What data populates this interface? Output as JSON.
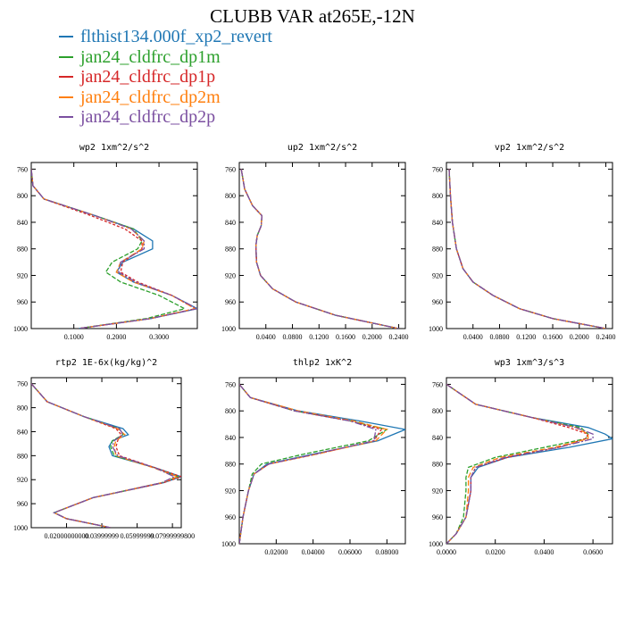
{
  "title": "CLUBB VAR at265E,-12N",
  "legend": [
    {
      "name": "flthist134.000f_xp2_revert",
      "color": "#1f77b4"
    },
    {
      "name": "jan24_cldfrc_dp1m",
      "color": "#2ca02c"
    },
    {
      "name": "jan24_cldfrc_dp1p",
      "color": "#d62728"
    },
    {
      "name": "jan24_cldfrc_dp2m",
      "color": "#ff7f0e"
    },
    {
      "name": "jan24_cldfrc_dp2p",
      "color": "#7b4fa0"
    }
  ],
  "chart_data": [
    {
      "type": "line",
      "title": "wp2   1xm^2/s^2",
      "ylim": [
        1000,
        750
      ],
      "yticks": [
        "760",
        "800",
        "840",
        "880",
        "920",
        "960",
        "1000"
      ],
      "xlim": [
        0.0,
        0.39
      ],
      "xticks": [
        "0.1000",
        "0.2000",
        "0.3000"
      ],
      "y": [
        760,
        785,
        805,
        830,
        850,
        868,
        880,
        900,
        915,
        930,
        950,
        970,
        985,
        1000
      ],
      "series": [
        {
          "name": "flthist134.000f_xp2_revert",
          "values": [
            0.0,
            0.004,
            0.03,
            0.15,
            0.24,
            0.285,
            0.285,
            0.215,
            0.2,
            0.24,
            0.33,
            0.39,
            0.28,
            0.11
          ]
        },
        {
          "name": "jan24_cldfrc_dp1m",
          "values": [
            0.0,
            0.004,
            0.03,
            0.15,
            0.24,
            0.26,
            0.25,
            0.19,
            0.175,
            0.21,
            0.3,
            0.36,
            0.27,
            0.11
          ]
        },
        {
          "name": "jan24_cldfrc_dp1p",
          "values": [
            0.0,
            0.004,
            0.03,
            0.14,
            0.22,
            0.26,
            0.26,
            0.215,
            0.21,
            0.25,
            0.33,
            0.385,
            0.28,
            0.11
          ]
        },
        {
          "name": "jan24_cldfrc_dp2m",
          "values": [
            0.0,
            0.004,
            0.03,
            0.15,
            0.235,
            0.265,
            0.26,
            0.21,
            0.2,
            0.24,
            0.33,
            0.385,
            0.28,
            0.11
          ]
        },
        {
          "name": "jan24_cldfrc_dp2p",
          "values": [
            0.0,
            0.004,
            0.03,
            0.15,
            0.235,
            0.265,
            0.265,
            0.21,
            0.205,
            0.245,
            0.33,
            0.39,
            0.28,
            0.11
          ]
        }
      ]
    },
    {
      "type": "line",
      "title": "up2   1xm^2/s^2",
      "ylim": [
        1000,
        750
      ],
      "yticks": [
        "760",
        "800",
        "840",
        "880",
        "920",
        "960",
        "1000"
      ],
      "xlim": [
        0.0,
        0.25
      ],
      "xticks": [
        "0.0400",
        "0.0800",
        "0.1200",
        "0.1600",
        "0.2000",
        "0.2400"
      ],
      "y": [
        760,
        790,
        815,
        830,
        845,
        860,
        875,
        900,
        920,
        940,
        960,
        980,
        1000
      ],
      "series": [
        {
          "name": "flthist134.000f_xp2_revert",
          "values": [
            0.003,
            0.008,
            0.02,
            0.034,
            0.033,
            0.027,
            0.025,
            0.026,
            0.032,
            0.05,
            0.085,
            0.145,
            0.24
          ]
        },
        {
          "name": "jan24_cldfrc_dp1m",
          "values": [
            0.003,
            0.008,
            0.02,
            0.034,
            0.033,
            0.027,
            0.025,
            0.026,
            0.032,
            0.05,
            0.085,
            0.145,
            0.24
          ]
        },
        {
          "name": "jan24_cldfrc_dp1p",
          "values": [
            0.003,
            0.008,
            0.02,
            0.034,
            0.033,
            0.027,
            0.025,
            0.026,
            0.032,
            0.05,
            0.085,
            0.145,
            0.24
          ]
        },
        {
          "name": "jan24_cldfrc_dp2m",
          "values": [
            0.003,
            0.008,
            0.02,
            0.034,
            0.033,
            0.027,
            0.025,
            0.026,
            0.032,
            0.05,
            0.085,
            0.145,
            0.24
          ]
        },
        {
          "name": "jan24_cldfrc_dp2p",
          "values": [
            0.003,
            0.008,
            0.02,
            0.034,
            0.033,
            0.027,
            0.025,
            0.026,
            0.032,
            0.05,
            0.085,
            0.145,
            0.24
          ]
        }
      ]
    },
    {
      "type": "line",
      "title": "vp2   1xm^2/s^2",
      "ylim": [
        1000,
        750
      ],
      "yticks": [
        "760",
        "800",
        "840",
        "880",
        "920",
        "960",
        "1000"
      ],
      "xlim": [
        0.0,
        0.25
      ],
      "xticks": [
        "0.0400",
        "0.0800",
        "0.1200",
        "0.1600",
        "0.2000",
        "0.2400"
      ],
      "y": [
        760,
        800,
        840,
        880,
        910,
        930,
        950,
        970,
        985,
        1000
      ],
      "series": [
        {
          "name": "flthist134.000f_xp2_revert",
          "values": [
            0.004,
            0.006,
            0.009,
            0.015,
            0.025,
            0.04,
            0.07,
            0.11,
            0.16,
            0.24
          ]
        },
        {
          "name": "jan24_cldfrc_dp1m",
          "values": [
            0.004,
            0.006,
            0.009,
            0.015,
            0.025,
            0.04,
            0.07,
            0.11,
            0.16,
            0.24
          ]
        },
        {
          "name": "jan24_cldfrc_dp1p",
          "values": [
            0.004,
            0.006,
            0.009,
            0.015,
            0.025,
            0.04,
            0.07,
            0.11,
            0.16,
            0.24
          ]
        },
        {
          "name": "jan24_cldfrc_dp2m",
          "values": [
            0.004,
            0.006,
            0.009,
            0.015,
            0.025,
            0.04,
            0.07,
            0.11,
            0.16,
            0.24
          ]
        },
        {
          "name": "jan24_cldfrc_dp2p",
          "values": [
            0.004,
            0.006,
            0.009,
            0.015,
            0.025,
            0.04,
            0.07,
            0.11,
            0.16,
            0.24
          ]
        }
      ]
    },
    {
      "type": "line",
      "title": "rtp2   1E-6x(kg/kg)^2",
      "ylim": [
        1000,
        750
      ],
      "yticks": [
        "760",
        "800",
        "840",
        "880",
        "920",
        "960",
        "1000"
      ],
      "xlim": [
        0.0,
        0.085
      ],
      "xticks": [
        "0.02000000000",
        "0.03999999",
        "0.05999999",
        "0.07999999800"
      ],
      "y": [
        760,
        790,
        815,
        835,
        845,
        855,
        865,
        880,
        900,
        915,
        925,
        950,
        975,
        985,
        1000
      ],
      "series": [
        {
          "name": "flthist134.000f_xp2_revert",
          "values": [
            0.0,
            0.009,
            0.03,
            0.052,
            0.055,
            0.046,
            0.044,
            0.046,
            0.07,
            0.085,
            0.075,
            0.035,
            0.013,
            0.02,
            0.045
          ]
        },
        {
          "name": "jan24_cldfrc_dp1m",
          "values": [
            0.0,
            0.009,
            0.03,
            0.05,
            0.052,
            0.046,
            0.045,
            0.047,
            0.07,
            0.083,
            0.074,
            0.035,
            0.013,
            0.02,
            0.045
          ]
        },
        {
          "name": "jan24_cldfrc_dp1p",
          "values": [
            0.0,
            0.009,
            0.03,
            0.048,
            0.051,
            0.049,
            0.048,
            0.05,
            0.07,
            0.085,
            0.075,
            0.035,
            0.013,
            0.02,
            0.045
          ]
        },
        {
          "name": "jan24_cldfrc_dp2m",
          "values": [
            0.0,
            0.009,
            0.03,
            0.049,
            0.053,
            0.048,
            0.047,
            0.048,
            0.069,
            0.083,
            0.074,
            0.035,
            0.013,
            0.02,
            0.045
          ]
        },
        {
          "name": "jan24_cldfrc_dp2p",
          "values": [
            0.0,
            0.009,
            0.03,
            0.05,
            0.052,
            0.047,
            0.046,
            0.049,
            0.07,
            0.081,
            0.074,
            0.035,
            0.013,
            0.02,
            0.045
          ]
        }
      ]
    },
    {
      "type": "line",
      "title": "thlp2   1xK^2",
      "ylim": [
        1000,
        750
      ],
      "yticks": [
        "760",
        "800",
        "840",
        "880",
        "920",
        "960",
        "1000"
      ],
      "xlim": [
        0.0,
        0.09
      ],
      "xticks": [
        "0.02000",
        "0.04000",
        "0.06000",
        "0.08000"
      ],
      "y": [
        760,
        780,
        800,
        815,
        828,
        845,
        865,
        880,
        895,
        920,
        960,
        1000
      ],
      "series": [
        {
          "name": "flthist134.000f_xp2_revert",
          "values": [
            0.0,
            0.006,
            0.032,
            0.065,
            0.09,
            0.075,
            0.04,
            0.015,
            0.008,
            0.005,
            0.002,
            0.0
          ]
        },
        {
          "name": "jan24_cldfrc_dp1m",
          "values": [
            0.0,
            0.006,
            0.03,
            0.06,
            0.08,
            0.07,
            0.035,
            0.012,
            0.007,
            0.005,
            0.002,
            0.0
          ]
        },
        {
          "name": "jan24_cldfrc_dp1p",
          "values": [
            0.0,
            0.006,
            0.03,
            0.06,
            0.077,
            0.073,
            0.042,
            0.016,
            0.008,
            0.005,
            0.002,
            0.0
          ]
        },
        {
          "name": "jan24_cldfrc_dp2m",
          "values": [
            0.0,
            0.006,
            0.032,
            0.062,
            0.08,
            0.074,
            0.042,
            0.016,
            0.008,
            0.005,
            0.002,
            0.0
          ]
        },
        {
          "name": "jan24_cldfrc_dp2p",
          "values": [
            0.0,
            0.006,
            0.03,
            0.06,
            0.074,
            0.073,
            0.041,
            0.016,
            0.008,
            0.005,
            0.002,
            0.0
          ]
        }
      ]
    },
    {
      "type": "line",
      "title": "wp3   1xm^3/s^3",
      "ylim": [
        1000,
        750
      ],
      "yticks": [
        "760",
        "800",
        "840",
        "880",
        "920",
        "960",
        "1000"
      ],
      "xlim": [
        0.0,
        0.068
      ],
      "xticks": [
        "0.0000",
        "0.0200",
        "0.0400",
        "0.0600"
      ],
      "y": [
        760,
        790,
        810,
        825,
        835,
        842,
        855,
        870,
        885,
        900,
        920,
        960,
        985,
        1000
      ],
      "series": [
        {
          "name": "flthist134.000f_xp2_revert",
          "values": [
            0.0,
            0.012,
            0.035,
            0.058,
            0.065,
            0.068,
            0.05,
            0.025,
            0.013,
            0.01,
            0.01,
            0.008,
            0.004,
            0.0
          ]
        },
        {
          "name": "jan24_cldfrc_dp1m",
          "values": [
            0.0,
            0.012,
            0.035,
            0.055,
            0.058,
            0.057,
            0.04,
            0.02,
            0.009,
            0.008,
            0.008,
            0.007,
            0.004,
            0.0
          ]
        },
        {
          "name": "jan24_cldfrc_dp1p",
          "values": [
            0.0,
            0.012,
            0.035,
            0.05,
            0.058,
            0.057,
            0.046,
            0.025,
            0.012,
            0.01,
            0.01,
            0.008,
            0.004,
            0.0
          ]
        },
        {
          "name": "jan24_cldfrc_dp2m",
          "values": [
            0.0,
            0.012,
            0.035,
            0.053,
            0.058,
            0.058,
            0.044,
            0.022,
            0.011,
            0.009,
            0.009,
            0.008,
            0.004,
            0.0
          ]
        },
        {
          "name": "jan24_cldfrc_dp2p",
          "values": [
            0.0,
            0.012,
            0.035,
            0.053,
            0.06,
            0.06,
            0.046,
            0.024,
            0.012,
            0.01,
            0.01,
            0.008,
            0.004,
            0.0
          ]
        }
      ]
    }
  ]
}
